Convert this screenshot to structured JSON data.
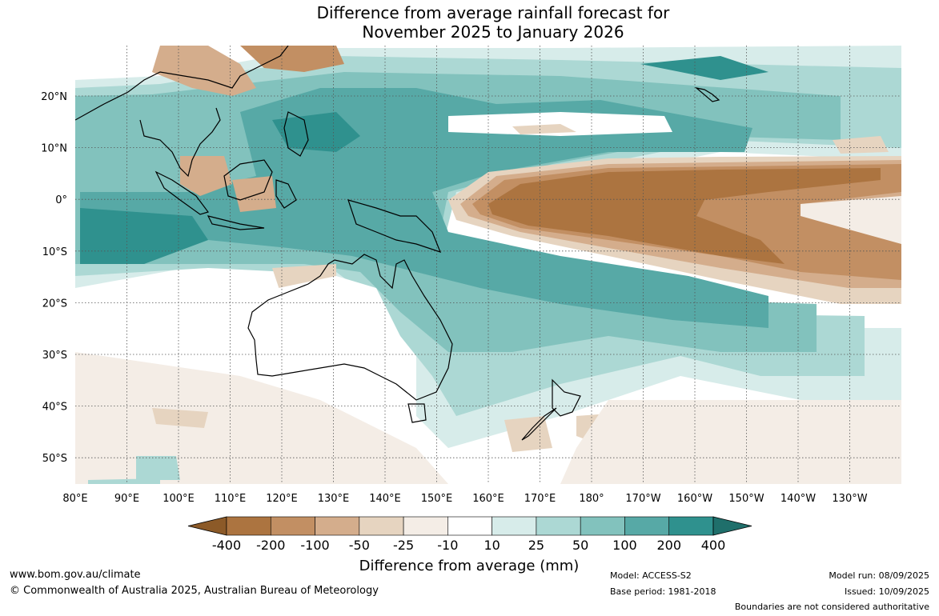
{
  "title": {
    "line1": "Difference from average rainfall forecast for",
    "line2": "November 2025 to January 2026"
  },
  "axes": {
    "lat_labels": [
      "20°N",
      "10°N",
      "0°",
      "10°S",
      "20°S",
      "30°S",
      "40°S",
      "50°S"
    ],
    "lon_labels": [
      "80°E",
      "90°E",
      "100°E",
      "110°E",
      "120°E",
      "130°E",
      "140°E",
      "150°E",
      "160°E",
      "170°E",
      "180°",
      "170°W",
      "160°W",
      "150°W",
      "140°W",
      "130°W"
    ]
  },
  "colorbar": {
    "label": "Difference from average (mm)",
    "tick_labels": [
      "-400",
      "-200",
      "-100",
      "-50",
      "-25",
      "-10",
      "10",
      "25",
      "50",
      "100",
      "200",
      "400"
    ],
    "colors": [
      "#8c5a28",
      "#ac7440",
      "#c28f63",
      "#d4ad8c",
      "#e6d4c0",
      "#f4ede6",
      "#ffffff",
      "#d7ecea",
      "#acd8d4",
      "#82c2bd",
      "#57a9a6",
      "#2f918e",
      "#1f6f6b"
    ]
  },
  "footer": {
    "website": "www.bom.gov.au/climate",
    "copyright": "© Commonwealth of Australia 2025, Australian Bureau of Meteorology",
    "model": "Model: ACCESS-S2",
    "base_period": "Base period: 1981-2018",
    "model_run": "Model run: 08/09/2025",
    "issued": "Issued: 10/09/2025",
    "disclaimer": "Boundaries are not considered authoritative"
  }
}
